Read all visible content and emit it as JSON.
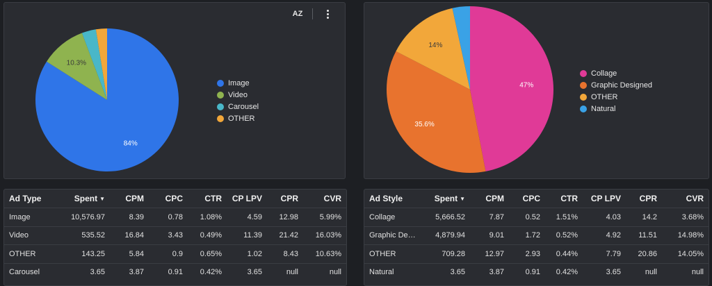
{
  "chart_data": [
    {
      "type": "pie",
      "title": "",
      "series": [
        {
          "label": "Image",
          "value": 84,
          "color": "#2f75e8",
          "data_label": "84%"
        },
        {
          "label": "Video",
          "value": 10.3,
          "color": "#8fb34f",
          "data_label": "10.3%"
        },
        {
          "label": "Carousel",
          "value": 3.2,
          "color": "#49b7c8",
          "data_label": ""
        },
        {
          "label": "OTHER",
          "value": 2.5,
          "color": "#f2a73a",
          "data_label": ""
        }
      ],
      "legend_placement": "right"
    },
    {
      "type": "pie",
      "title": "",
      "series": [
        {
          "label": "Collage",
          "value": 47,
          "color": "#e03a97",
          "data_label": "47%"
        },
        {
          "label": "Graphic Designed",
          "value": 35.6,
          "color": "#e8732e",
          "data_label": "35.6%"
        },
        {
          "label": "OTHER",
          "value": 14,
          "color": "#f2a73a",
          "data_label": "14%"
        },
        {
          "label": "Natural",
          "value": 3.4,
          "color": "#3aa2e6",
          "data_label": ""
        }
      ],
      "legend_placement": "right"
    }
  ],
  "toolbar": {
    "sort_az_label": "AZ",
    "sort_icon": "sort-az-icon",
    "menu_icon": "kebab-menu-icon"
  },
  "tables": {
    "ad_type": {
      "columns": [
        "Ad Type",
        "Spent",
        "CPM",
        "CPC",
        "CTR",
        "CP LPV",
        "CPR",
        "CVR"
      ],
      "sort_indicator": "▼",
      "rows": [
        [
          "Image",
          "10,576.97",
          "8.39",
          "0.78",
          "1.08%",
          "4.59",
          "12.98",
          "5.99%"
        ],
        [
          "Video",
          "535.52",
          "16.84",
          "3.43",
          "0.49%",
          "11.39",
          "21.42",
          "16.03%"
        ],
        [
          "OTHER",
          "143.25",
          "5.84",
          "0.9",
          "0.65%",
          "1.02",
          "8.43",
          "10.63%"
        ],
        [
          "Carousel",
          "3.65",
          "3.87",
          "0.91",
          "0.42%",
          "3.65",
          "null",
          "null"
        ]
      ]
    },
    "ad_style": {
      "columns": [
        "Ad Style",
        "Spent",
        "CPM",
        "CPC",
        "CTR",
        "CP LPV",
        "CPR",
        "CVR"
      ],
      "sort_indicator": "▼",
      "rows": [
        [
          "Collage",
          "5,666.52",
          "7.87",
          "0.52",
          "1.51%",
          "4.03",
          "14.2",
          "3.68%"
        ],
        [
          "Graphic Desi...",
          "4,879.94",
          "9.01",
          "1.72",
          "0.52%",
          "4.92",
          "11.51",
          "14.98%"
        ],
        [
          "OTHER",
          "709.28",
          "12.97",
          "2.93",
          "0.44%",
          "7.79",
          "20.86",
          "14.05%"
        ],
        [
          "Natural",
          "3.65",
          "3.87",
          "0.91",
          "0.42%",
          "3.65",
          "null",
          "null"
        ]
      ]
    }
  }
}
